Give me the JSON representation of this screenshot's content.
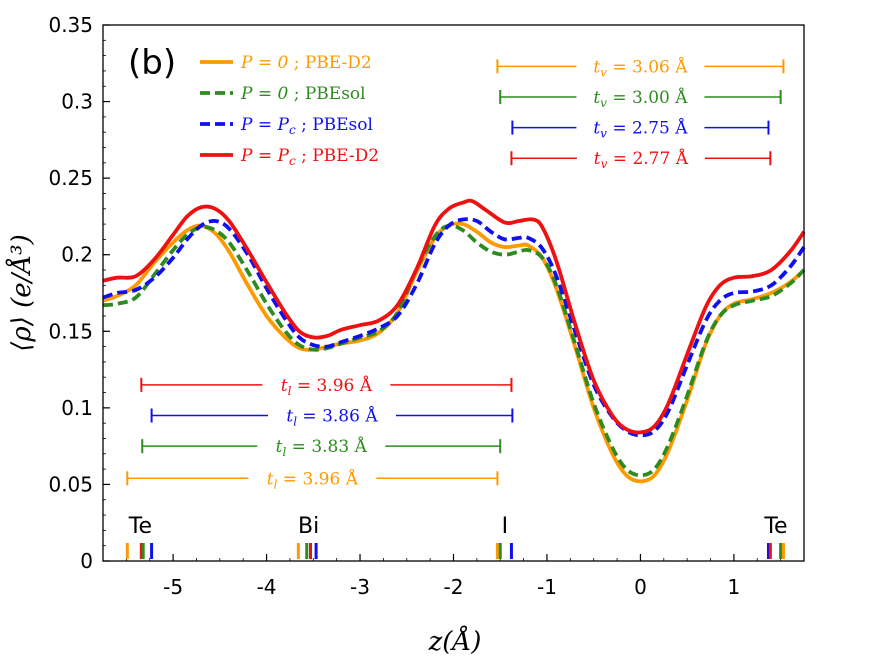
{
  "chart_data": {
    "type": "line",
    "panel_label": "(b)",
    "xlabel": "z(Å)",
    "ylabel": "⟨ρ⟩ (e/Å³)",
    "xlim": [
      -5.75,
      1.75
    ],
    "ylim": [
      0,
      0.35
    ],
    "xticks": [
      -5,
      -4,
      -3,
      -2,
      -1,
      0,
      1
    ],
    "xtick_labels": [
      "-5",
      "-4",
      "-3",
      "-2",
      "-1",
      "0",
      "1"
    ],
    "yticks": [
      0,
      0.05,
      0.1,
      0.15,
      0.2,
      0.25,
      0.3,
      0.35
    ],
    "ytick_labels": [
      "0",
      "0.05",
      "0.1",
      "0.15",
      "0.2",
      "0.25",
      "0.3",
      "0.35"
    ],
    "series": [
      {
        "name": "P = 0 ; PBE-D2",
        "label_math": "P = 0",
        "label_method": "PBE-D2",
        "color": "#ff9900",
        "dash": "solid",
        "points": [
          [
            -5.75,
            0.17
          ],
          [
            -5.6,
            0.173
          ],
          [
            -5.4,
            0.18
          ],
          [
            -5.2,
            0.195
          ],
          [
            -5.0,
            0.208
          ],
          [
            -4.85,
            0.216
          ],
          [
            -4.7,
            0.219
          ],
          [
            -4.55,
            0.214
          ],
          [
            -4.4,
            0.202
          ],
          [
            -4.2,
            0.18
          ],
          [
            -4.0,
            0.16
          ],
          [
            -3.8,
            0.146
          ],
          [
            -3.65,
            0.139
          ],
          [
            -3.5,
            0.138
          ],
          [
            -3.35,
            0.14
          ],
          [
            -3.2,
            0.142
          ],
          [
            -3.0,
            0.144
          ],
          [
            -2.8,
            0.149
          ],
          [
            -2.6,
            0.162
          ],
          [
            -2.4,
            0.188
          ],
          [
            -2.2,
            0.211
          ],
          [
            -2.05,
            0.219
          ],
          [
            -1.9,
            0.22
          ],
          [
            -1.75,
            0.215
          ],
          [
            -1.6,
            0.208
          ],
          [
            -1.45,
            0.205
          ],
          [
            -1.3,
            0.206
          ],
          [
            -1.2,
            0.206
          ],
          [
            -1.05,
            0.198
          ],
          [
            -0.9,
            0.178
          ],
          [
            -0.7,
            0.14
          ],
          [
            -0.5,
            0.1
          ],
          [
            -0.3,
            0.07
          ],
          [
            -0.15,
            0.056
          ],
          [
            0.0,
            0.052
          ],
          [
            0.15,
            0.056
          ],
          [
            0.3,
            0.072
          ],
          [
            0.5,
            0.105
          ],
          [
            0.7,
            0.142
          ],
          [
            0.85,
            0.16
          ],
          [
            1.0,
            0.168
          ],
          [
            1.2,
            0.171
          ],
          [
            1.4,
            0.175
          ],
          [
            1.6,
            0.182
          ],
          [
            1.75,
            0.19
          ]
        ]
      },
      {
        "name": "P = 0 ; PBEsol",
        "label_math": "P = 0",
        "label_method": "PBEsol",
        "color": "#2e8b20",
        "dash": "dashed",
        "points": [
          [
            -5.75,
            0.167
          ],
          [
            -5.6,
            0.168
          ],
          [
            -5.4,
            0.172
          ],
          [
            -5.2,
            0.187
          ],
          [
            -5.0,
            0.203
          ],
          [
            -4.85,
            0.213
          ],
          [
            -4.7,
            0.218
          ],
          [
            -4.55,
            0.216
          ],
          [
            -4.4,
            0.208
          ],
          [
            -4.2,
            0.189
          ],
          [
            -4.0,
            0.168
          ],
          [
            -3.8,
            0.15
          ],
          [
            -3.65,
            0.141
          ],
          [
            -3.5,
            0.138
          ],
          [
            -3.35,
            0.139
          ],
          [
            -3.2,
            0.142
          ],
          [
            -3.0,
            0.146
          ],
          [
            -2.8,
            0.15
          ],
          [
            -2.6,
            0.162
          ],
          [
            -2.4,
            0.19
          ],
          [
            -2.2,
            0.212
          ],
          [
            -2.05,
            0.219
          ],
          [
            -1.9,
            0.216
          ],
          [
            -1.75,
            0.208
          ],
          [
            -1.6,
            0.202
          ],
          [
            -1.45,
            0.2
          ],
          [
            -1.3,
            0.202
          ],
          [
            -1.2,
            0.203
          ],
          [
            -1.05,
            0.198
          ],
          [
            -0.9,
            0.18
          ],
          [
            -0.7,
            0.142
          ],
          [
            -0.5,
            0.103
          ],
          [
            -0.3,
            0.074
          ],
          [
            -0.15,
            0.06
          ],
          [
            0.0,
            0.056
          ],
          [
            0.15,
            0.06
          ],
          [
            0.3,
            0.076
          ],
          [
            0.5,
            0.108
          ],
          [
            0.7,
            0.143
          ],
          [
            0.85,
            0.16
          ],
          [
            1.0,
            0.167
          ],
          [
            1.2,
            0.17
          ],
          [
            1.4,
            0.173
          ],
          [
            1.6,
            0.181
          ],
          [
            1.75,
            0.19
          ]
        ]
      },
      {
        "name": "P = Pc ; PBEsol",
        "label_math": "P = P",
        "label_sub": "c",
        "label_method": "PBEsol",
        "color": "#1010ee",
        "dash": "dashed",
        "points": [
          [
            -5.75,
            0.172
          ],
          [
            -5.6,
            0.175
          ],
          [
            -5.4,
            0.177
          ],
          [
            -5.2,
            0.185
          ],
          [
            -5.0,
            0.198
          ],
          [
            -4.85,
            0.21
          ],
          [
            -4.7,
            0.219
          ],
          [
            -4.55,
            0.222
          ],
          [
            -4.4,
            0.217
          ],
          [
            -4.2,
            0.2
          ],
          [
            -4.0,
            0.178
          ],
          [
            -3.8,
            0.158
          ],
          [
            -3.65,
            0.146
          ],
          [
            -3.5,
            0.141
          ],
          [
            -3.35,
            0.14
          ],
          [
            -3.2,
            0.143
          ],
          [
            -3.0,
            0.147
          ],
          [
            -2.8,
            0.152
          ],
          [
            -2.6,
            0.16
          ],
          [
            -2.4,
            0.18
          ],
          [
            -2.2,
            0.207
          ],
          [
            -2.05,
            0.219
          ],
          [
            -1.9,
            0.223
          ],
          [
            -1.75,
            0.222
          ],
          [
            -1.6,
            0.215
          ],
          [
            -1.45,
            0.21
          ],
          [
            -1.3,
            0.211
          ],
          [
            -1.2,
            0.211
          ],
          [
            -1.05,
            0.204
          ],
          [
            -0.9,
            0.186
          ],
          [
            -0.7,
            0.15
          ],
          [
            -0.5,
            0.115
          ],
          [
            -0.3,
            0.094
          ],
          [
            -0.15,
            0.085
          ],
          [
            0.0,
            0.082
          ],
          [
            0.15,
            0.085
          ],
          [
            0.3,
            0.098
          ],
          [
            0.5,
            0.128
          ],
          [
            0.7,
            0.157
          ],
          [
            0.85,
            0.17
          ],
          [
            1.0,
            0.175
          ],
          [
            1.2,
            0.176
          ],
          [
            1.4,
            0.18
          ],
          [
            1.6,
            0.192
          ],
          [
            1.75,
            0.205
          ]
        ]
      },
      {
        "name": "P = Pc ; PBE-D2",
        "label_math": "P = P",
        "label_sub": "c",
        "label_method": "PBE-D2",
        "color": "#ee1111",
        "dash": "solid",
        "points": [
          [
            -5.75,
            0.183
          ],
          [
            -5.6,
            0.185
          ],
          [
            -5.4,
            0.186
          ],
          [
            -5.2,
            0.197
          ],
          [
            -5.0,
            0.213
          ],
          [
            -4.85,
            0.225
          ],
          [
            -4.7,
            0.231
          ],
          [
            -4.55,
            0.23
          ],
          [
            -4.4,
            0.222
          ],
          [
            -4.2,
            0.203
          ],
          [
            -4.0,
            0.182
          ],
          [
            -3.8,
            0.162
          ],
          [
            -3.65,
            0.15
          ],
          [
            -3.5,
            0.146
          ],
          [
            -3.35,
            0.147
          ],
          [
            -3.2,
            0.151
          ],
          [
            -3.0,
            0.154
          ],
          [
            -2.8,
            0.157
          ],
          [
            -2.6,
            0.167
          ],
          [
            -2.4,
            0.19
          ],
          [
            -2.2,
            0.219
          ],
          [
            -2.05,
            0.23
          ],
          [
            -1.9,
            0.234
          ],
          [
            -1.8,
            0.235
          ],
          [
            -1.65,
            0.229
          ],
          [
            -1.45,
            0.221
          ],
          [
            -1.3,
            0.222
          ],
          [
            -1.15,
            0.223
          ],
          [
            -1.05,
            0.218
          ],
          [
            -0.9,
            0.196
          ],
          [
            -0.7,
            0.155
          ],
          [
            -0.5,
            0.118
          ],
          [
            -0.3,
            0.095
          ],
          [
            -0.15,
            0.086
          ],
          [
            0.0,
            0.084
          ],
          [
            0.15,
            0.088
          ],
          [
            0.3,
            0.103
          ],
          [
            0.5,
            0.135
          ],
          [
            0.7,
            0.166
          ],
          [
            0.85,
            0.18
          ],
          [
            1.0,
            0.185
          ],
          [
            1.2,
            0.186
          ],
          [
            1.4,
            0.19
          ],
          [
            1.6,
            0.202
          ],
          [
            1.75,
            0.215
          ]
        ]
      }
    ],
    "tv_annotations": [
      {
        "label_var": "t",
        "label_sub": "v",
        "value": "= 3.06 Å",
        "color": "#ff9900",
        "x_range": [
          -1.53,
          1.53
        ],
        "y": 0.323
      },
      {
        "label_var": "t",
        "label_sub": "v",
        "value": "= 3.00 Å",
        "color": "#2e8b20",
        "x_range": [
          -1.5,
          1.5
        ],
        "y": 0.303
      },
      {
        "label_var": "t",
        "label_sub": "v",
        "value": "= 2.75 Å",
        "color": "#1010ee",
        "x_range": [
          -1.37,
          1.37
        ],
        "y": 0.283
      },
      {
        "label_var": "t",
        "label_sub": "v",
        "value": "= 2.77 Å",
        "color": "#ee1111",
        "x_range": [
          -1.38,
          1.39
        ],
        "y": 0.263
      }
    ],
    "tl_annotations": [
      {
        "label_var": "t",
        "label_sub": "l",
        "value": "= 3.96 Å",
        "color": "#ee1111",
        "x_range": [
          -5.34,
          -1.38
        ],
        "y": 0.115
      },
      {
        "label_var": "t",
        "label_sub": "l",
        "value": "= 3.86 Å",
        "color": "#1010ee",
        "x_range": [
          -5.23,
          -1.37
        ],
        "y": 0.095
      },
      {
        "label_var": "t",
        "label_sub": "l",
        "value": "= 3.83 Å",
        "color": "#2e8b20",
        "x_range": [
          -5.33,
          -1.5
        ],
        "y": 0.075
      },
      {
        "label_var": "t",
        "label_sub": "l",
        "value": "= 3.96 Å",
        "color": "#ff9900",
        "x_range": [
          -5.49,
          -1.53
        ],
        "y": 0.054
      }
    ],
    "atom_labels": [
      {
        "text": "Te",
        "x": -5.35
      },
      {
        "text": "Bi",
        "x": -3.55
      },
      {
        "text": "I",
        "x": -1.45
      },
      {
        "text": "Te",
        "x": 1.45
      }
    ],
    "atom_markers": [
      {
        "x": -5.49,
        "color": "#ff9900"
      },
      {
        "x": -5.34,
        "color": "#ee1111"
      },
      {
        "x": -5.32,
        "color": "#2e8b20"
      },
      {
        "x": -5.23,
        "color": "#1010ee"
      },
      {
        "x": -3.66,
        "color": "#ff9900"
      },
      {
        "x": -3.57,
        "color": "#2e8b20"
      },
      {
        "x": -3.53,
        "color": "#ee1111"
      },
      {
        "x": -3.47,
        "color": "#1010ee"
      },
      {
        "x": -1.53,
        "color": "#ff9900"
      },
      {
        "x": -1.5,
        "color": "#2e8b20"
      },
      {
        "x": -1.38,
        "color": "#1010ee"
      },
      {
        "x": 1.37,
        "color": "#1010ee"
      },
      {
        "x": 1.39,
        "color": "#ee1111"
      },
      {
        "x": 1.5,
        "color": "#2e8b20"
      },
      {
        "x": 1.53,
        "color": "#ff9900"
      }
    ]
  }
}
